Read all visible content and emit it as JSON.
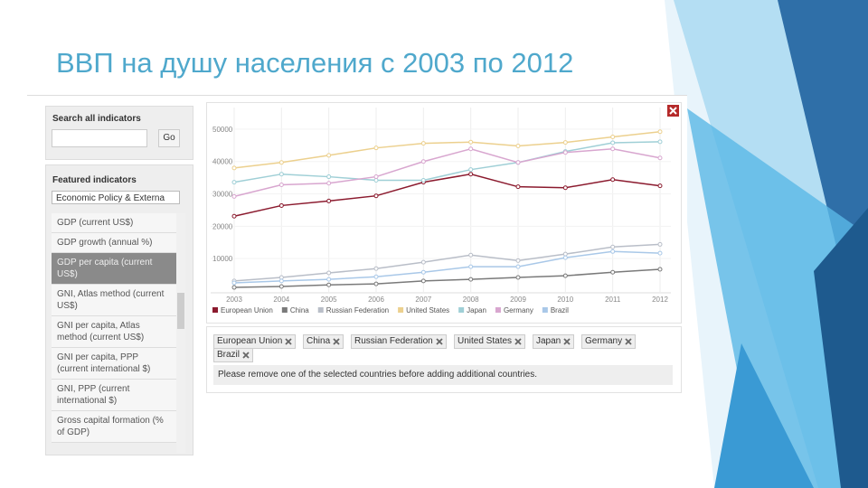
{
  "slide": {
    "title": "ВВП на душу населения с 2003 по 2012"
  },
  "sidebar": {
    "search_label": "Search all indicators",
    "go_button": "Go",
    "featured_label": "Featured indicators",
    "dropdown": "Economic Policy & Externa",
    "indicators": [
      "GDP (current US$)",
      "GDP growth (annual %)",
      "GDP per capita (current US$)",
      "GNI, Atlas method (current US$)",
      "GNI per capita, Atlas method (current US$)",
      "GNI per capita, PPP (current international $)",
      "GNI, PPP (current international $)",
      "Gross capital formation (% of GDP)"
    ]
  },
  "chart_data": {
    "type": "line",
    "x": [
      2003,
      2004,
      2005,
      2006,
      2007,
      2008,
      2009,
      2010,
      2011,
      2012
    ],
    "xlim": [
      2003,
      2012
    ],
    "xticks": [
      2003,
      2004,
      2005,
      2006,
      2007,
      2008,
      2009,
      2010,
      2011,
      2012
    ],
    "ylim": [
      0,
      55000
    ],
    "yticks": [
      10000,
      20000,
      30000,
      40000,
      50000
    ],
    "grid": true,
    "series": [
      {
        "name": "European Union",
        "color": "#8b1a2e",
        "values": [
          23100,
          26400,
          27800,
          29400,
          33600,
          36100,
          32200,
          31900,
          34400,
          32500
        ]
      },
      {
        "name": "China",
        "color": "#7a7a7a",
        "values": [
          1100,
          1400,
          1900,
          2200,
          3100,
          3600,
          4200,
          4700,
          5800,
          6700
        ]
      },
      {
        "name": "Russian Federation",
        "color": "#b9bec8",
        "values": [
          3100,
          4200,
          5600,
          6900,
          8900,
          11100,
          9400,
          11400,
          13600,
          14400
        ]
      },
      {
        "name": "United States",
        "color": "#ecd08e",
        "values": [
          38000,
          39700,
          41900,
          44200,
          45600,
          46000,
          44800,
          45900,
          47600,
          49200
        ]
      },
      {
        "name": "Japan",
        "color": "#9fcfd6",
        "values": [
          33600,
          36100,
          35300,
          34200,
          34200,
          37500,
          39700,
          43100,
          45800,
          46100
        ]
      },
      {
        "name": "Germany",
        "color": "#d8a6cf",
        "values": [
          29200,
          32800,
          33300,
          35300,
          40000,
          43900,
          39700,
          42800,
          43900,
          41100
        ]
      },
      {
        "name": "Brazil",
        "color": "#a9c8e8",
        "values": [
          2500,
          3100,
          3600,
          4400,
          5800,
          7500,
          7500,
          10300,
          12200,
          11700
        ]
      }
    ]
  },
  "message": "Please remove one of the selected countries before adding additional countries."
}
